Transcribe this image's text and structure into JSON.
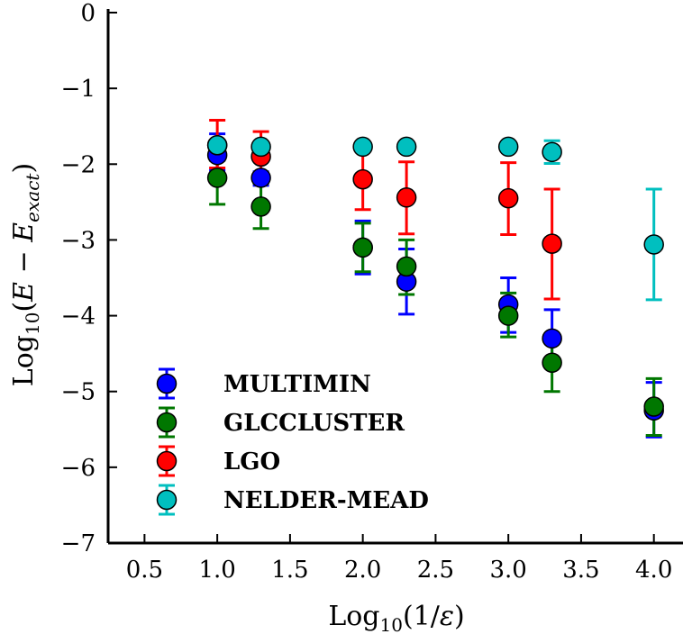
{
  "chart_data": {
    "type": "scatter",
    "title": "",
    "xlabel": "Log10(1/ε)",
    "ylabel": "Log10(E − Eexact)",
    "xlim": [
      0.25,
      4.2
    ],
    "ylim": [
      -7,
      0
    ],
    "xticks": [
      0.5,
      1.0,
      1.5,
      2.0,
      2.5,
      3.0,
      3.5,
      4.0
    ],
    "xtick_labels": [
      "0.5",
      "1.0",
      "1.5",
      "2.0",
      "2.5",
      "3.0",
      "3.5",
      "4.0"
    ],
    "yticks": [
      0,
      -1,
      -2,
      -3,
      -4,
      -5,
      -6,
      -7
    ],
    "ytick_labels": [
      "0",
      "−1",
      "−2",
      "−3",
      "−4",
      "−5",
      "−6",
      "−7"
    ],
    "legend_position": "lower-left",
    "series": [
      {
        "name": "MULTIMIN",
        "color": "#0000ff",
        "points": [
          {
            "x": 1.0,
            "y": -1.88,
            "lo": -2.08,
            "hi": -1.6
          },
          {
            "x": 1.3,
            "y": -2.18,
            "lo": -2.28,
            "hi": -2.1
          },
          {
            "x": 2.0,
            "y": -3.1,
            "lo": -3.45,
            "hi": -2.75
          },
          {
            "x": 2.3,
            "y": -3.55,
            "lo": -3.98,
            "hi": -3.12
          },
          {
            "x": 3.0,
            "y": -3.85,
            "lo": -4.22,
            "hi": -3.5
          },
          {
            "x": 3.3,
            "y": -4.3,
            "lo": -4.65,
            "hi": -3.92
          },
          {
            "x": 4.0,
            "y": -5.25,
            "lo": -5.6,
            "hi": -4.88
          }
        ]
      },
      {
        "name": "GLCCLUSTER",
        "color": "#007700",
        "points": [
          {
            "x": 1.0,
            "y": -2.18,
            "lo": -2.53,
            "hi": -1.95
          },
          {
            "x": 1.3,
            "y": -2.56,
            "lo": -2.85,
            "hi": -2.25
          },
          {
            "x": 2.0,
            "y": -3.1,
            "lo": -3.42,
            "hi": -2.78
          },
          {
            "x": 2.3,
            "y": -3.35,
            "lo": -3.72,
            "hi": -3.0
          },
          {
            "x": 3.0,
            "y": -4.0,
            "lo": -4.28,
            "hi": -3.7
          },
          {
            "x": 3.3,
            "y": -4.62,
            "lo": -5.0,
            "hi": -4.25
          },
          {
            "x": 4.0,
            "y": -5.2,
            "lo": -5.58,
            "hi": -4.83
          }
        ]
      },
      {
        "name": "LGO",
        "color": "#ff0000",
        "points": [
          {
            "x": 1.0,
            "y": -1.75,
            "lo": -2.05,
            "hi": -1.42
          },
          {
            "x": 1.3,
            "y": -1.9,
            "lo": -2.22,
            "hi": -1.57
          },
          {
            "x": 2.0,
            "y": -2.2,
            "lo": -2.6,
            "hi": -1.8
          },
          {
            "x": 2.3,
            "y": -2.44,
            "lo": -2.92,
            "hi": -1.97
          },
          {
            "x": 3.0,
            "y": -2.45,
            "lo": -2.93,
            "hi": -1.98
          },
          {
            "x": 3.3,
            "y": -3.05,
            "lo": -3.78,
            "hi": -2.33
          }
        ]
      },
      {
        "name": "NELDER-MEAD",
        "color": "#00bfbf",
        "points": [
          {
            "x": 1.0,
            "y": -1.75,
            "lo": -1.8,
            "hi": -1.7
          },
          {
            "x": 1.3,
            "y": -1.77,
            "lo": -1.82,
            "hi": -1.72
          },
          {
            "x": 2.0,
            "y": -1.77,
            "lo": -1.82,
            "hi": -1.72
          },
          {
            "x": 2.3,
            "y": -1.77,
            "lo": -1.82,
            "hi": -1.72
          },
          {
            "x": 3.0,
            "y": -1.77,
            "lo": -1.82,
            "hi": -1.72
          },
          {
            "x": 3.3,
            "y": -1.84,
            "lo": -1.99,
            "hi": -1.69
          },
          {
            "x": 4.0,
            "y": -3.06,
            "lo": -3.79,
            "hi": -2.33
          }
        ]
      }
    ]
  }
}
